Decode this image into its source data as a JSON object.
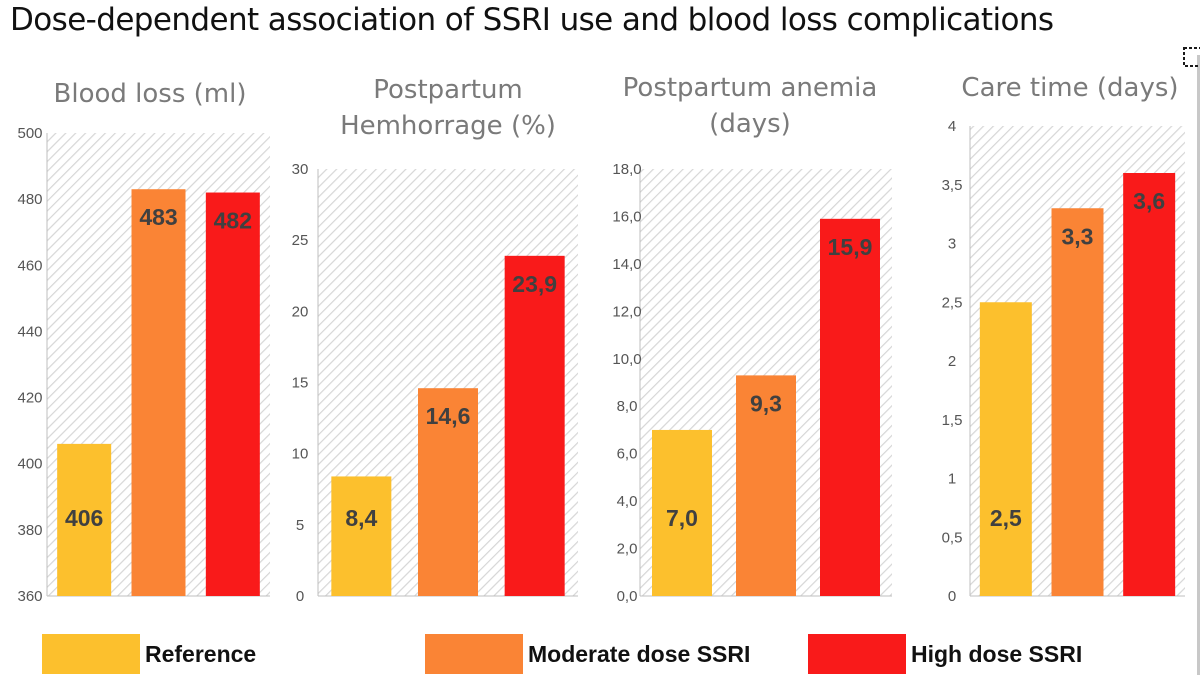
{
  "title": "Dose-dependent association of SSRI use and blood loss complications",
  "colors": {
    "reference": "#fcc02d",
    "moderate": "#fa8435",
    "high": "#f91a1a",
    "axis_text": "#555555",
    "value_label": "#404040",
    "hatch": "#d6d6d6"
  },
  "legend": {
    "reference": "Reference",
    "moderate": "Moderate dose SSRI",
    "high": "High dose SSRI"
  },
  "chart_data": [
    {
      "type": "bar",
      "title_lines": [
        "Blood loss (ml)"
      ],
      "categories": [
        "Reference",
        "Moderate dose SSRI",
        "High dose SSRI"
      ],
      "values": [
        406,
        483,
        482
      ],
      "value_labels": [
        "406",
        "483",
        "482"
      ],
      "ylim": [
        360,
        500
      ],
      "yticks": [
        "360",
        "380",
        "400",
        "420",
        "440",
        "460",
        "480",
        "500"
      ]
    },
    {
      "type": "bar",
      "title_lines": [
        "Postpartum",
        "Hemhorrage (%)"
      ],
      "categories": [
        "Reference",
        "Moderate dose SSRI",
        "High dose SSRI"
      ],
      "values": [
        8.4,
        14.6,
        23.9
      ],
      "value_labels": [
        "8,4",
        "14,6",
        "23,9"
      ],
      "ylim": [
        0,
        30
      ],
      "yticks": [
        "0",
        "5",
        "10",
        "15",
        "20",
        "25",
        "30"
      ]
    },
    {
      "type": "bar",
      "title_lines": [
        "Postpartum anemia",
        "(days)"
      ],
      "categories": [
        "Reference",
        "Moderate dose SSRI",
        "High dose SSRI"
      ],
      "values": [
        7.0,
        9.3,
        15.9
      ],
      "value_labels": [
        "7,0",
        "9,3",
        "15,9"
      ],
      "ylim": [
        0,
        18
      ],
      "yticks": [
        "0,0",
        "2,0",
        "4,0",
        "6,0",
        "8,0",
        "10,0",
        "12,0",
        "14,0",
        "16,0",
        "18,0"
      ]
    },
    {
      "type": "bar",
      "title_lines": [
        "Care time (days)"
      ],
      "categories": [
        "Reference",
        "Moderate dose SSRI",
        "High dose SSRI"
      ],
      "values": [
        2.5,
        3.3,
        3.6
      ],
      "value_labels": [
        "2,5",
        "3,3",
        "3,6"
      ],
      "ylim": [
        0,
        4
      ],
      "yticks": [
        "0",
        "0,5",
        "1",
        "1,5",
        "2",
        "2,5",
        "3",
        "3,5",
        "4"
      ]
    }
  ]
}
